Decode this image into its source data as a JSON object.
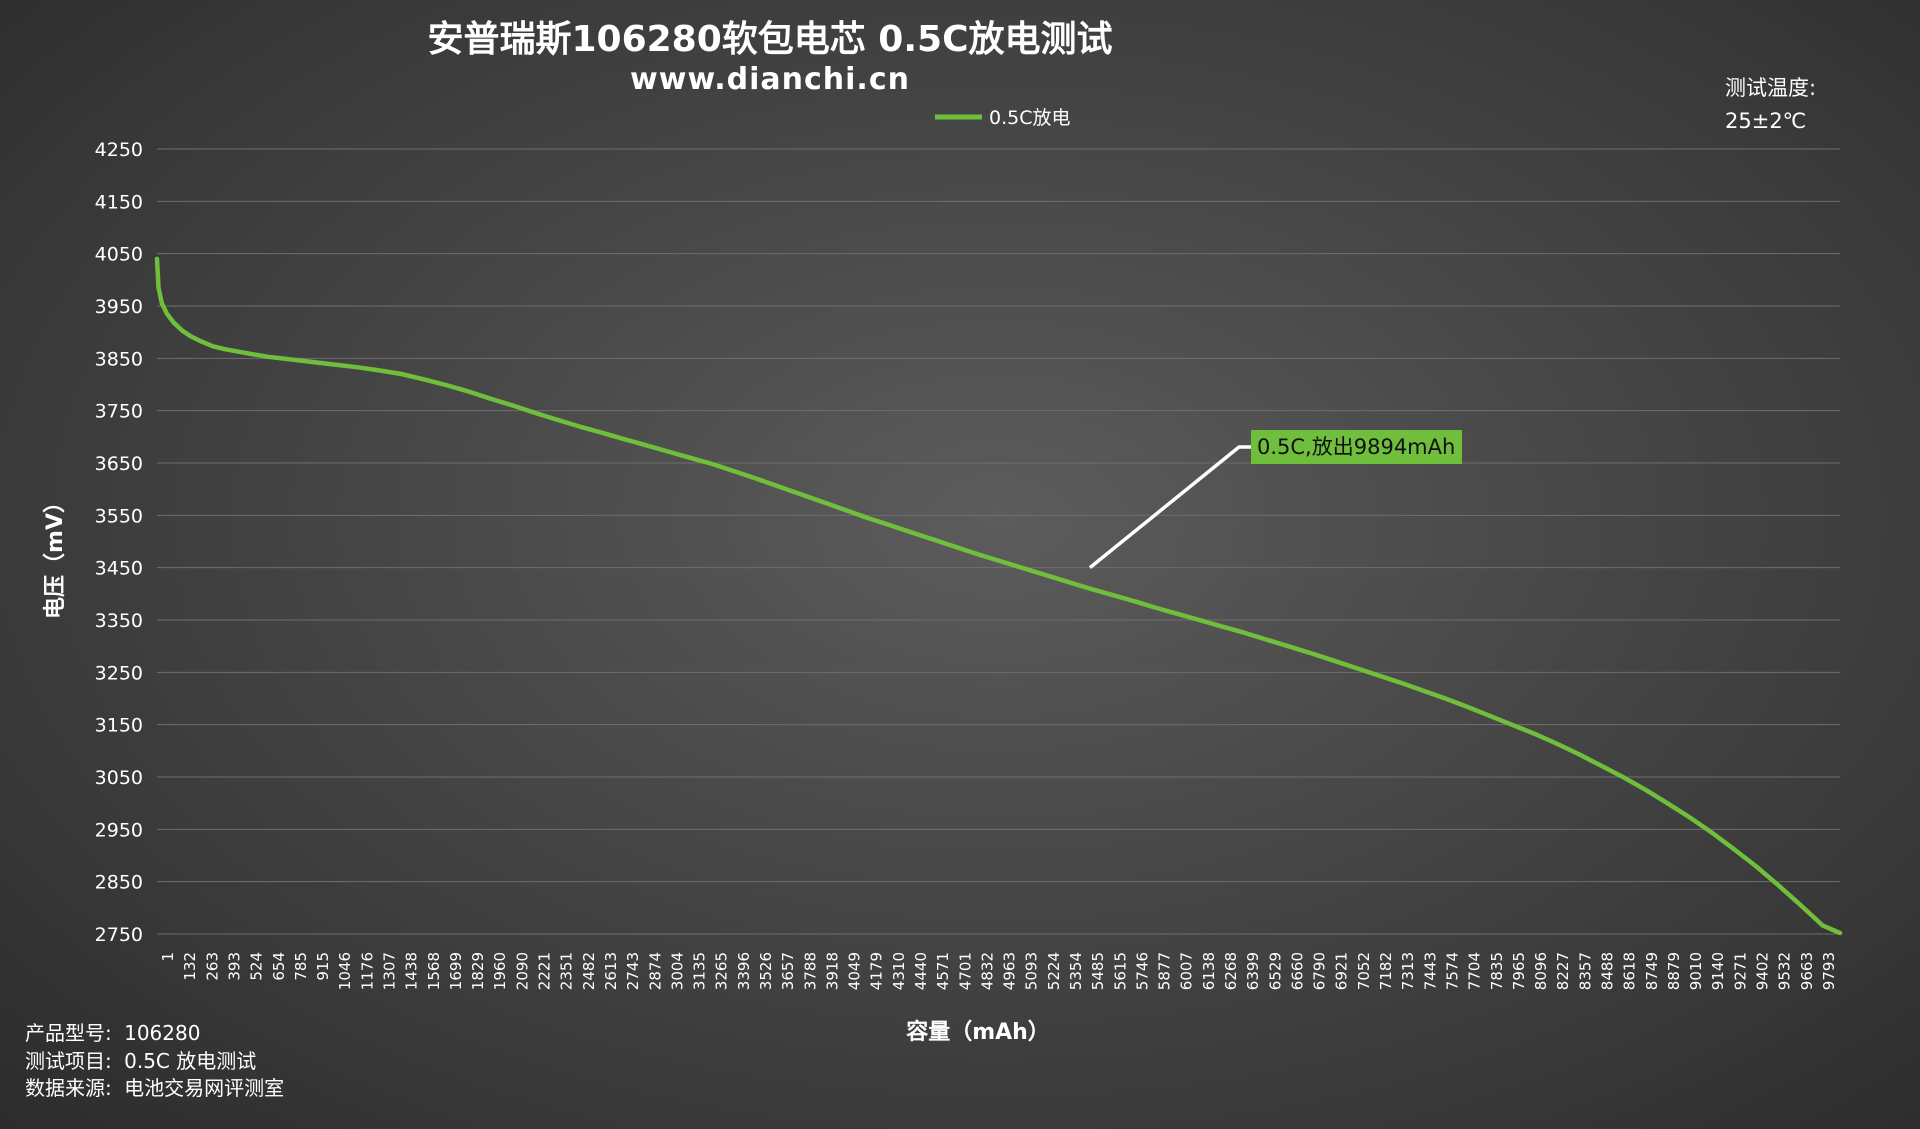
{
  "chart_data": {
    "type": "line",
    "title": "安普瑞斯106280软包电芯 0.5C放电测试",
    "subtitle": "www.dianchi.cn",
    "xlabel": "容量（mAh）",
    "ylabel": "电压（mV）",
    "ylim": [
      2750,
      4250
    ],
    "yticks": [
      4250,
      4150,
      4050,
      3950,
      3850,
      3750,
      3650,
      3550,
      3450,
      3350,
      3250,
      3150,
      3050,
      2950,
      2850,
      2750
    ],
    "xlim": [
      1,
      9894
    ],
    "xticks": [
      1,
      132,
      263,
      393,
      524,
      654,
      785,
      915,
      1046,
      1176,
      1307,
      1438,
      1568,
      1699,
      1829,
      1960,
      2090,
      2221,
      2351,
      2482,
      2613,
      2743,
      2874,
      3004,
      3135,
      3265,
      3396,
      3526,
      3657,
      3788,
      3918,
      4049,
      4179,
      4310,
      4440,
      4571,
      4701,
      4832,
      4963,
      5093,
      5224,
      5354,
      5485,
      5615,
      5746,
      5877,
      6007,
      6138,
      6268,
      6399,
      6529,
      6660,
      6790,
      6921,
      7052,
      7182,
      7313,
      7443,
      7574,
      7704,
      7835,
      7965,
      8096,
      8227,
      8357,
      8488,
      8618,
      8749,
      8879,
      9010,
      9140,
      9271,
      9402,
      9532,
      9663,
      9793
    ],
    "grid": true,
    "legend_position": "top-center",
    "series": [
      {
        "name": "0.5C放电",
        "color": "#6fbe3c",
        "x": [
          1,
          10,
          30,
          60,
          100,
          150,
          200,
          263,
          330,
          393,
          524,
          654,
          785,
          915,
          1046,
          1176,
          1307,
          1438,
          1568,
          1699,
          1829,
          1960,
          2090,
          2221,
          2351,
          2482,
          2613,
          2743,
          2874,
          3004,
          3135,
          3265,
          3396,
          3526,
          3657,
          3788,
          3918,
          4049,
          4179,
          4310,
          4440,
          4571,
          4701,
          4832,
          4963,
          5093,
          5224,
          5354,
          5485,
          5615,
          5746,
          5877,
          6007,
          6138,
          6268,
          6399,
          6529,
          6660,
          6790,
          6921,
          7052,
          7182,
          7313,
          7443,
          7574,
          7704,
          7835,
          7965,
          8096,
          8227,
          8357,
          8488,
          8618,
          8749,
          8879,
          9010,
          9140,
          9271,
          9402,
          9532,
          9663,
          9793,
          9894
        ],
        "y": [
          4040,
          3985,
          3955,
          3935,
          3918,
          3903,
          3892,
          3882,
          3873,
          3868,
          3860,
          3853,
          3848,
          3843,
          3838,
          3833,
          3827,
          3820,
          3810,
          3799,
          3787,
          3773,
          3760,
          3746,
          3733,
          3720,
          3708,
          3696,
          3684,
          3672,
          3660,
          3648,
          3634,
          3620,
          3605,
          3590,
          3575,
          3560,
          3545,
          3531,
          3517,
          3503,
          3489,
          3475,
          3462,
          3449,
          3436,
          3423,
          3410,
          3398,
          3386,
          3373,
          3361,
          3349,
          3337,
          3325,
          3312,
          3299,
          3286,
          3272,
          3258,
          3244,
          3230,
          3215,
          3200,
          3184,
          3167,
          3150,
          3133,
          3114,
          3094,
          3072,
          3050,
          3026,
          3000,
          2973,
          2944,
          2912,
          2879,
          2843,
          2805,
          2766,
          2752
        ]
      }
    ],
    "annotations": [
      {
        "text": "0.5C,放出9894mAh",
        "x": 5485,
        "y": 3450,
        "background": "#6fbe3c"
      }
    ]
  },
  "temperature": {
    "label": "测试温度:",
    "value": "25±2℃"
  },
  "info": [
    {
      "label": "产品型号:",
      "value": "106280"
    },
    {
      "label": "测试项目:",
      "value": "0.5C 放电测试"
    },
    {
      "label": "数据来源:",
      "value": "电池交易网评测室"
    }
  ]
}
